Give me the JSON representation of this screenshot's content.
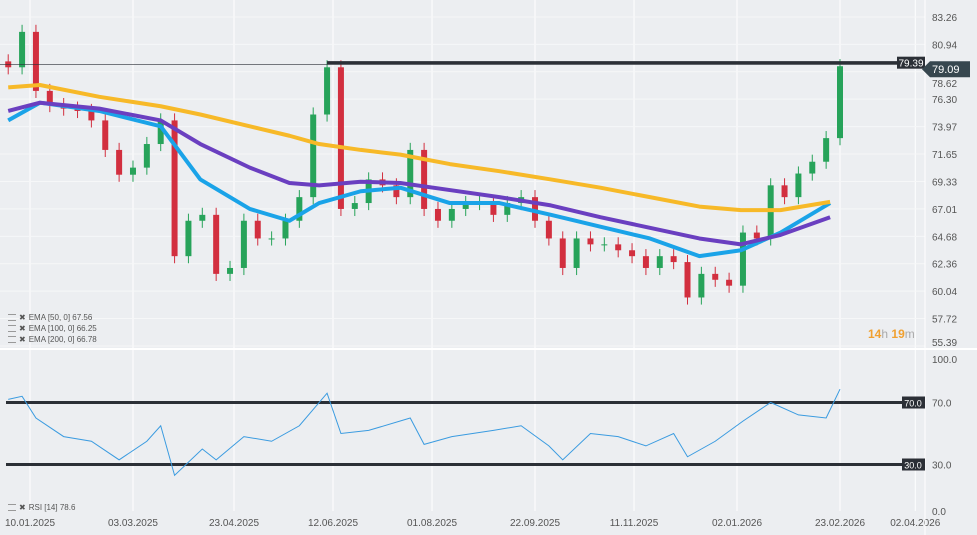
{
  "chart_data": [
    {
      "type": "candlestick",
      "panel": "price",
      "y_ticks": [
        "83.26",
        "80.94",
        "78.62",
        "76.30",
        "73.97",
        "71.65",
        "69.33",
        "67.01",
        "64.68",
        "62.36",
        "60.04",
        "57.72",
        "55.39"
      ],
      "ylim": [
        55.39,
        83.26
      ],
      "x_ticks": [
        "10.01.2025",
        "03.03.2025",
        "23.04.2025",
        "12.06.2025",
        "01.08.2025",
        "22.09.2025",
        "11.11.2025",
        "02.01.2026",
        "23.02.2026",
        "02.04.2026"
      ],
      "closes": [
        [
          "30.12.2024",
          79
        ],
        [
          "06.01.2025",
          82
        ],
        [
          "13.01.2025",
          77
        ],
        [
          "20.01.2025",
          75.8
        ],
        [
          "27.01.2025",
          75.5
        ],
        [
          "03.02.2025",
          75.3
        ],
        [
          "10.02.2025",
          74.5
        ],
        [
          "17.02.2025",
          72
        ],
        [
          "24.02.2025",
          69.9
        ],
        [
          "03.03.2025",
          70.5
        ],
        [
          "10.03.2025",
          72.5
        ],
        [
          "17.03.2025",
          74.5
        ],
        [
          "24.03.2025",
          63
        ],
        [
          "31.03.2025",
          66
        ],
        [
          "07.04.2025",
          66.5
        ],
        [
          "14.04.2025",
          61.5
        ],
        [
          "21.04.2025",
          62
        ],
        [
          "28.04.2025",
          66
        ],
        [
          "05.05.2025",
          64.5
        ],
        [
          "12.05.2025",
          64.5
        ],
        [
          "19.05.2025",
          66
        ],
        [
          "26.05.2025",
          68
        ],
        [
          "02.06.2025",
          75
        ],
        [
          "09.06.2025",
          79
        ],
        [
          "16.06.2025",
          67
        ],
        [
          "23.06.2025",
          67.5
        ],
        [
          "30.06.2025",
          69.5
        ],
        [
          "07.07.2025",
          69
        ],
        [
          "14.07.2025",
          68
        ],
        [
          "21.07.2025",
          72
        ],
        [
          "28.07.2025",
          67
        ],
        [
          "04.08.2025",
          66
        ],
        [
          "11.08.2025",
          67
        ],
        [
          "18.08.2025",
          67.5
        ],
        [
          "25.08.2025",
          67.5
        ],
        [
          "01.09.2025",
          66.5
        ],
        [
          "08.09.2025",
          67.5
        ],
        [
          "15.09.2025",
          68
        ],
        [
          "22.09.2025",
          66
        ],
        [
          "29.09.2025",
          64.5
        ],
        [
          "06.10.2025",
          62
        ],
        [
          "13.10.2025",
          64.5
        ],
        [
          "20.10.2025",
          64
        ],
        [
          "27.10.2025",
          64
        ],
        [
          "03.11.2025",
          63.5
        ],
        [
          "10.11.2025",
          63
        ],
        [
          "17.11.2025",
          62
        ],
        [
          "24.11.2025",
          63
        ],
        [
          "01.12.2025",
          62.5
        ],
        [
          "08.12.2025",
          59.5
        ],
        [
          "15.12.2025",
          61.5
        ],
        [
          "22.12.2025",
          61
        ],
        [
          "29.12.2025",
          60.5
        ],
        [
          "05.01.2026",
          65
        ],
        [
          "12.01.2026",
          64.5
        ],
        [
          "19.01.2026",
          69
        ],
        [
          "26.01.2026",
          68
        ],
        [
          "02.02.2026",
          70
        ],
        [
          "09.02.2026",
          71
        ],
        [
          "16.02.2026",
          73
        ],
        [
          "23.02.2026",
          79.09
        ]
      ],
      "last_price": "79.09",
      "resistance": "79.39",
      "series": [
        {
          "name": "EMA [50, 0] 67.56",
          "color": "#1aa3e8",
          "points": [
            [
              "30.12.2024",
              74.5
            ],
            [
              "15.01.2025",
              76
            ],
            [
              "14.02.2025",
              75.3
            ],
            [
              "17.03.2025",
              74
            ],
            [
              "06.04.2025",
              69.5
            ],
            [
              "01.05.2025",
              67
            ],
            [
              "21.05.2025",
              66
            ],
            [
              "05.06.2025",
              67.5
            ],
            [
              "26.06.2025",
              68.5
            ],
            [
              "16.07.2025",
              68.8
            ],
            [
              "10.08.2025",
              67.5
            ],
            [
              "04.09.2025",
              67.5
            ],
            [
              "30.09.2025",
              66.5
            ],
            [
              "25.10.2025",
              65.5
            ],
            [
              "19.11.2025",
              64.5
            ],
            [
              "14.12.2025",
              63
            ],
            [
              "04.01.2026",
              63.5
            ],
            [
              "24.01.2026",
              65
            ],
            [
              "18.02.2026",
              67.5
            ]
          ]
        },
        {
          "name": "EMA [100, 0] 66.25",
          "color": "#6a3fc0",
          "points": [
            [
              "30.12.2024",
              75.3
            ],
            [
              "15.01.2025",
              76
            ],
            [
              "14.02.2025",
              75.5
            ],
            [
              "17.03.2025",
              74.5
            ],
            [
              "06.04.2025",
              72.5
            ],
            [
              "01.05.2025",
              70.5
            ],
            [
              "21.05.2025",
              69.2
            ],
            [
              "05.06.2025",
              69
            ],
            [
              "26.06.2025",
              69.3
            ],
            [
              "16.07.2025",
              69.2
            ],
            [
              "10.08.2025",
              68.6
            ],
            [
              "04.09.2025",
              68
            ],
            [
              "30.09.2025",
              67.3
            ],
            [
              "25.10.2025",
              66.3
            ],
            [
              "19.11.2025",
              65.4
            ],
            [
              "14.12.2025",
              64.5
            ],
            [
              "04.01.2026",
              64
            ],
            [
              "24.01.2026",
              64.8
            ],
            [
              "18.02.2026",
              66.3
            ]
          ]
        },
        {
          "name": "EMA [200, 0] 66.78",
          "color": "#f7b928",
          "points": [
            [
              "30.12.2024",
              77.3
            ],
            [
              "15.01.2025",
              77.5
            ],
            [
              "14.02.2025",
              76.5
            ],
            [
              "17.03.2025",
              75.7
            ],
            [
              "06.04.2025",
              75
            ],
            [
              "01.05.2025",
              74
            ],
            [
              "21.05.2025",
              73.2
            ],
            [
              "05.06.2025",
              72.5
            ],
            [
              "26.06.2025",
              72
            ],
            [
              "16.07.2025",
              71.6
            ],
            [
              "10.08.2025",
              70.8
            ],
            [
              "04.09.2025",
              70.2
            ],
            [
              "30.09.2025",
              69.5
            ],
            [
              "25.10.2025",
              68.8
            ],
            [
              "19.11.2025",
              68
            ],
            [
              "14.12.2025",
              67.2
            ],
            [
              "04.01.2026",
              66.9
            ],
            [
              "24.01.2026",
              66.9
            ],
            [
              "18.02.2026",
              67.6
            ]
          ]
        }
      ]
    },
    {
      "type": "line",
      "panel": "rsi",
      "name": "RSI [14] 78.6",
      "color": "#3a9be0",
      "ylim": [
        0,
        100
      ],
      "y_ticks": [
        "100.0",
        "70.0",
        "30.0",
        "0.0"
      ],
      "levels": [
        "70.0",
        "30.0"
      ],
      "points": [
        [
          "30.12.2024",
          72
        ],
        [
          "06.01.2025",
          74
        ],
        [
          "13.01.2025",
          60
        ],
        [
          "27.01.2025",
          48
        ],
        [
          "10.02.2025",
          45
        ],
        [
          "24.02.2025",
          33
        ],
        [
          "10.03.2025",
          45
        ],
        [
          "17.03.2025",
          55
        ],
        [
          "24.03.2025",
          23
        ],
        [
          "07.04.2025",
          40
        ],
        [
          "14.04.2025",
          33
        ],
        [
          "28.04.2025",
          48
        ],
        [
          "12.05.2025",
          45
        ],
        [
          "26.05.2025",
          55
        ],
        [
          "09.06.2025",
          76
        ],
        [
          "16.06.2025",
          50
        ],
        [
          "30.06.2025",
          52
        ],
        [
          "21.07.2025",
          60
        ],
        [
          "28.07.2025",
          43
        ],
        [
          "11.08.2025",
          48
        ],
        [
          "01.09.2025",
          52
        ],
        [
          "15.09.2025",
          55
        ],
        [
          "29.09.2025",
          42
        ],
        [
          "06.10.2025",
          33
        ],
        [
          "20.10.2025",
          50
        ],
        [
          "03.11.2025",
          48
        ],
        [
          "17.11.2025",
          42
        ],
        [
          "01.12.2025",
          50
        ],
        [
          "08.12.2025",
          35
        ],
        [
          "22.12.2025",
          45
        ],
        [
          "05.01.2026",
          58
        ],
        [
          "19.01.2026",
          70
        ],
        [
          "02.02.2026",
          62
        ],
        [
          "16.02.2026",
          60
        ],
        [
          "23.02.2026",
          78.6
        ]
      ]
    }
  ],
  "countdown": {
    "hours": "14",
    "h": "h",
    "minutes": "19",
    "m": "m"
  },
  "colors": {
    "up": "#27a35a",
    "down": "#d22f3f",
    "line": "#2b2f36"
  }
}
